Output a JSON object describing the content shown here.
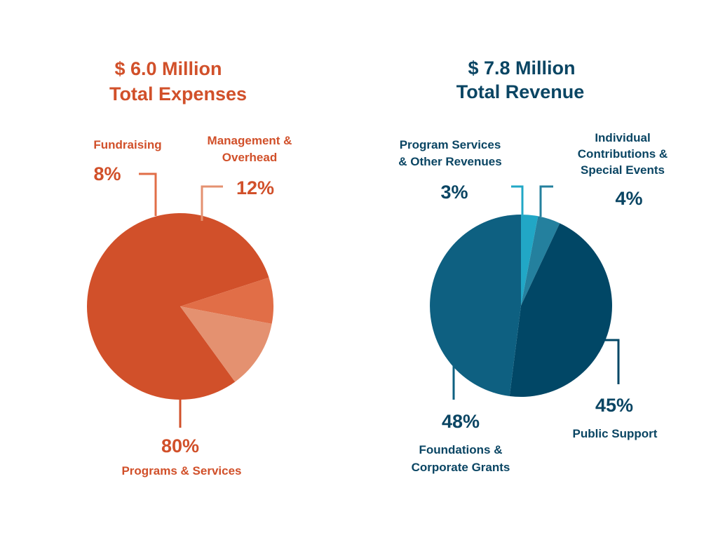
{
  "chart_data": [
    {
      "type": "pie",
      "title": [
        "$ 6.0 Million",
        "Total Expenses"
      ],
      "accent": "#d1502a",
      "slices": [
        {
          "label": [
            "Programs & Services"
          ],
          "percent": "80%",
          "value": 80,
          "color": "#d1502a"
        },
        {
          "label": [
            "Fundraising"
          ],
          "percent": "8%",
          "value": 8,
          "color": "#e16e47"
        },
        {
          "label": [
            "Management &",
            "Overhead"
          ],
          "percent": "12%",
          "value": 12,
          "color": "#e49170"
        }
      ]
    },
    {
      "type": "pie",
      "title": [
        "$ 7.8 Million",
        "Total Revenue"
      ],
      "accent": "#0a4563",
      "slices": [
        {
          "label": [
            "Program Services",
            "& Other Revenues"
          ],
          "percent": "3%",
          "value": 3,
          "color": "#21a7c6"
        },
        {
          "label": [
            "Individual",
            "Contributions &",
            "Special Events"
          ],
          "percent": "4%",
          "value": 4,
          "color": "#24809e"
        },
        {
          "label": [
            "Public Support"
          ],
          "percent": "45%",
          "value": 45,
          "color": "#014766"
        },
        {
          "label": [
            "Foundations &",
            "Corporate Grants"
          ],
          "percent": "48%",
          "value": 48,
          "color": "#0e6081"
        }
      ]
    }
  ]
}
